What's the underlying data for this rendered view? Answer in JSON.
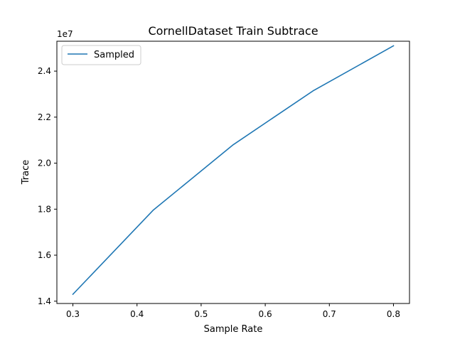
{
  "chart_data": {
    "type": "line",
    "title": "CornellDataset Train Subtrace",
    "xlabel": "Sample Rate",
    "ylabel": "Trace",
    "y_offset_label": "1e7",
    "xlim": [
      0.275,
      0.825
    ],
    "ylim": [
      1.39,
      2.53
    ],
    "x_ticks": [
      0.3,
      0.4,
      0.5,
      0.6,
      0.7,
      0.8
    ],
    "x_tick_labels": [
      "0.3",
      "0.4",
      "0.5",
      "0.6",
      "0.7",
      "0.8"
    ],
    "y_ticks": [
      1.4,
      1.6,
      1.8,
      2.0,
      2.2,
      2.4
    ],
    "y_tick_labels": [
      "1.4",
      "1.6",
      "1.8",
      "2.0",
      "2.2",
      "2.4"
    ],
    "y_scale_factor": 10000000,
    "grid": false,
    "legend_position": "upper-left",
    "series": [
      {
        "name": "Sampled",
        "color": "#1f77b4",
        "x": [
          0.3,
          0.425,
          0.55,
          0.675,
          0.8
        ],
        "y": [
          1.43,
          1.795,
          2.08,
          2.315,
          2.51
        ]
      }
    ]
  }
}
